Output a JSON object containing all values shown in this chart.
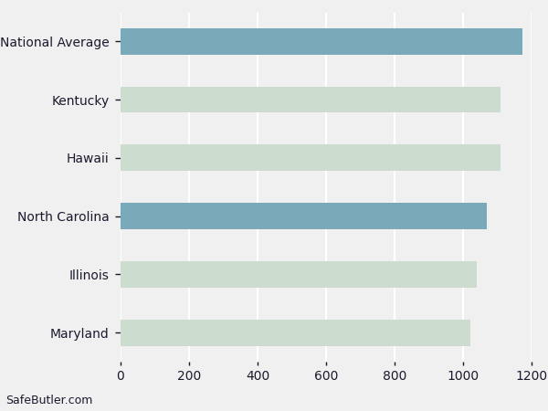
{
  "categories": [
    "Maryland",
    "Illinois",
    "North Carolina",
    "Hawaii",
    "Kentucky",
    "National Average"
  ],
  "values": [
    1020,
    1040,
    1070,
    1110,
    1110,
    1173
  ],
  "bar_colors": [
    "#ccddd0",
    "#ccddd0",
    "#7aaaba",
    "#ccddd0",
    "#ccddd0",
    "#7aaaba"
  ],
  "xlim": [
    0,
    1200
  ],
  "xticks": [
    0,
    200,
    400,
    600,
    800,
    1000,
    1200
  ],
  "background_color": "#f0f0f0",
  "plot_bg_color": "#f0f0f0",
  "bar_height": 0.45,
  "grid_color": "#ffffff",
  "label_color": "#1a1a2e",
  "tick_label_fontsize": 10,
  "watermark": "SafeButler.com",
  "watermark_fontsize": 9
}
